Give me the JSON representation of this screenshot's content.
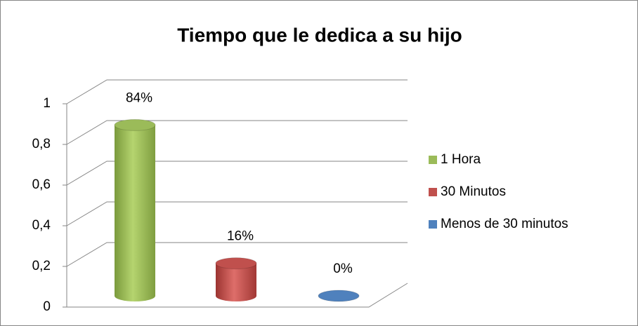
{
  "chart_data": {
    "type": "bar3d",
    "title": "Tiempo que le dedica a su hijo",
    "categories": [
      "1 Hora",
      "30 Minutos",
      "Menos de 30 minutos"
    ],
    "values": [
      0.84,
      0.16,
      0
    ],
    "value_labels": [
      "84%",
      "16%",
      "0%"
    ],
    "colors": [
      "#9bbb59",
      "#c0504d",
      "#4f81bd"
    ],
    "ylim": [
      0,
      1
    ],
    "yticks": [
      0,
      {
        "value": 0.2,
        "label": "0,2"
      },
      {
        "value": 0.4,
        "label": "0,4"
      },
      {
        "value": 0.6,
        "label": "0,6"
      },
      {
        "value": 0.8,
        "label": "0,8"
      },
      1
    ],
    "grid": true,
    "legend": "right"
  }
}
